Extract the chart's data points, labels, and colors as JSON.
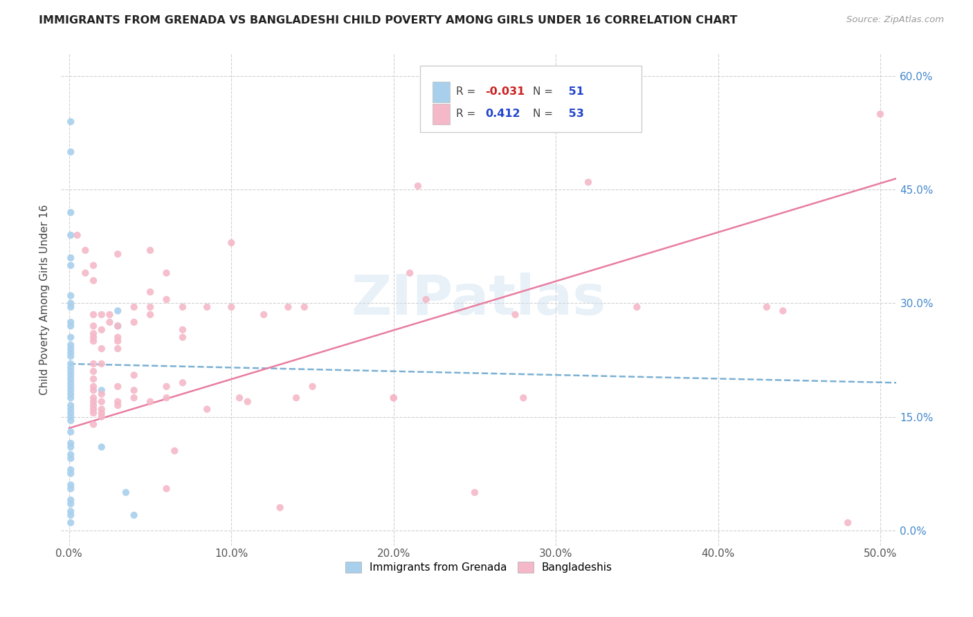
{
  "title": "IMMIGRANTS FROM GRENADA VS BANGLADESHI CHILD POVERTY AMONG GIRLS UNDER 16 CORRELATION CHART",
  "source": "Source: ZipAtlas.com",
  "ylabel": "Child Poverty Among Girls Under 16",
  "watermark": "ZIPatlas",
  "blue_color": "#a8d0ed",
  "pink_color": "#f4b8c8",
  "blue_line_color": "#7ab0d4",
  "pink_line_color": "#e87ca0",
  "xlim": [
    -0.5,
    51.0
  ],
  "ylim": [
    -2.0,
    63.0
  ],
  "x_tick_vals": [
    0,
    10,
    20,
    30,
    40,
    50
  ],
  "x_tick_labels": [
    "0.0%",
    "10.0%",
    "20.0%",
    "30.0%",
    "40.0%",
    "50.0%"
  ],
  "y_tick_vals": [
    0,
    15,
    30,
    45,
    60
  ],
  "y_tick_labels_right": [
    "0.0%",
    "15.0%",
    "30.0%",
    "45.0%",
    "60.0%"
  ],
  "blue_scatter_x": [
    0.1,
    0.1,
    0.1,
    0.1,
    0.1,
    0.1,
    0.1,
    0.1,
    0.1,
    0.1,
    0.1,
    0.1,
    0.1,
    0.1,
    0.1,
    0.1,
    0.1,
    0.1,
    0.1,
    0.1,
    0.1,
    0.1,
    0.1,
    0.1,
    0.1,
    0.1,
    0.1,
    0.1,
    0.1,
    0.1,
    0.1,
    0.1,
    0.1,
    0.1,
    0.1,
    0.1,
    0.1,
    0.1,
    0.1,
    0.1,
    0.1,
    0.1,
    0.1,
    0.1,
    0.1,
    2.0,
    2.0,
    3.0,
    3.0,
    3.5,
    4.0
  ],
  "blue_scatter_y": [
    54,
    50,
    42,
    39,
    36,
    35,
    31,
    30,
    29.5,
    27.5,
    27,
    25.5,
    24.5,
    24,
    23.5,
    23,
    22,
    21.5,
    21,
    20.5,
    20,
    19.5,
    19,
    18.5,
    18,
    17.5,
    16.5,
    16,
    15.5,
    15,
    14.5,
    13,
    11.5,
    11,
    10,
    9.5,
    8,
    7.5,
    6,
    5.5,
    4,
    3.5,
    2.5,
    2,
    1,
    18.5,
    11,
    29,
    27,
    5,
    2
  ],
  "pink_scatter_x": [
    0.5,
    1.0,
    1.0,
    1.5,
    1.5,
    1.5,
    1.5,
    1.5,
    1.5,
    1.5,
    1.5,
    1.5,
    1.5,
    1.5,
    1.5,
    1.5,
    1.5,
    1.5,
    1.5,
    1.5,
    1.5,
    2.0,
    2.0,
    2.0,
    2.0,
    2.0,
    2.0,
    2.0,
    2.0,
    2.0,
    2.5,
    2.5,
    3.0,
    3.0,
    3.0,
    3.0,
    3.0,
    3.0,
    3.0,
    3.0,
    4.0,
    4.0,
    4.0,
    4.0,
    4.0,
    5.0,
    5.0,
    5.0,
    5.0,
    5.0,
    6.0,
    6.0,
    6.0,
    6.0,
    6.0,
    6.5,
    7.0,
    7.0,
    7.0,
    7.0,
    8.5,
    8.5,
    10.0,
    10.0,
    10.5,
    11.0,
    12.0,
    13.0,
    13.5,
    14.0,
    14.5,
    15.0,
    20.0,
    20.0,
    21.0,
    21.5,
    22.0,
    25.0,
    27.5,
    28.0,
    32.0,
    35.0,
    43.0,
    44.0,
    48.0,
    50.0
  ],
  "pink_scatter_y": [
    39,
    37,
    34,
    35,
    33,
    28.5,
    27,
    26,
    25.5,
    25,
    22,
    21,
    20,
    19,
    18.5,
    17.5,
    17,
    16.5,
    16,
    15.5,
    14,
    28.5,
    26.5,
    24,
    22,
    18,
    17,
    16,
    15.5,
    15,
    28.5,
    27.5,
    36.5,
    27,
    25.5,
    25,
    24,
    19,
    17,
    16.5,
    29.5,
    27.5,
    20.5,
    18.5,
    17.5,
    37,
    31.5,
    29.5,
    28.5,
    17,
    34,
    30.5,
    19,
    17.5,
    5.5,
    10.5,
    29.5,
    26.5,
    25.5,
    19.5,
    29.5,
    16,
    38,
    29.5,
    17.5,
    17,
    28.5,
    3,
    29.5,
    17.5,
    29.5,
    19,
    17.5,
    17.5,
    34,
    45.5,
    30.5,
    5,
    28.5,
    17.5,
    46,
    29.5,
    29.5,
    29,
    1,
    55
  ],
  "blue_trend_x": [
    0,
    51
  ],
  "blue_trend_y": [
    22.0,
    19.5
  ],
  "pink_trend_x": [
    0,
    51
  ],
  "pink_trend_y": [
    13.5,
    46.5
  ]
}
